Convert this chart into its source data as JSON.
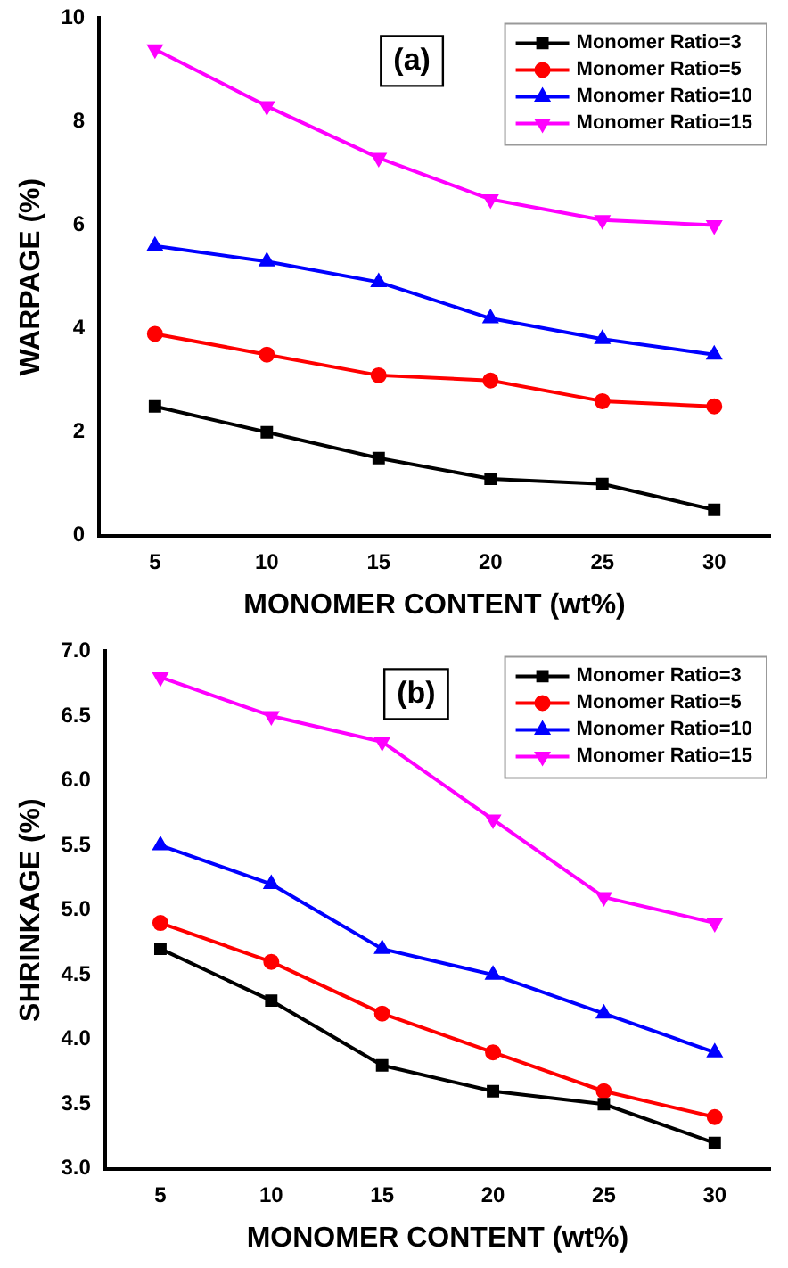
{
  "chart_data": [
    {
      "type": "line",
      "xlabel": "MONOMER CONTENT (wt%)",
      "ylabel": "WARPAGE (%)",
      "annotations": [
        "(a)"
      ],
      "x": [
        5,
        10,
        15,
        20,
        25,
        30
      ],
      "xlim": [
        2.5,
        32.5
      ],
      "xticks": [
        5,
        10,
        15,
        20,
        25,
        30
      ],
      "ylim": [
        0,
        10
      ],
      "yticks": [
        0,
        2,
        4,
        6,
        8,
        10
      ],
      "grid": false,
      "legend": "top right",
      "line_style": "solid",
      "series": [
        {
          "name": "Monomer Ratio=3",
          "color": "#000000",
          "marker": "square",
          "values": [
            2.5,
            2.0,
            1.5,
            1.1,
            1.0,
            0.5
          ]
        },
        {
          "name": "Monomer Ratio=5",
          "color": "#ff0000",
          "marker": "circle",
          "values": [
            3.9,
            3.5,
            3.1,
            3.0,
            2.6,
            2.5
          ]
        },
        {
          "name": "Monomer Ratio=10",
          "color": "#0000ff",
          "marker": "triangle",
          "values": [
            5.6,
            5.3,
            4.9,
            4.2,
            3.8,
            3.5
          ]
        },
        {
          "name": "Monomer Ratio=15",
          "color": "#ff00ff",
          "marker": "triangle-down",
          "values": [
            9.4,
            8.3,
            7.3,
            6.5,
            6.1,
            6.0
          ]
        }
      ]
    },
    {
      "type": "line",
      "xlabel": "MONOMER CONTENT (wt%)",
      "ylabel": "SHRINKAGE (%)",
      "annotations": [
        "(b)"
      ],
      "x": [
        5,
        10,
        15,
        20,
        25,
        30
      ],
      "xlim": [
        2.5,
        32.5
      ],
      "xticks": [
        5,
        10,
        15,
        20,
        25,
        30
      ],
      "ylim": [
        3,
        7
      ],
      "yticks": [
        {
          "value": 3,
          "label": "3.0"
        },
        3.5,
        {
          "value": 4,
          "label": "4.0"
        },
        4.5,
        {
          "value": 5,
          "label": "5.0"
        },
        5.5,
        {
          "value": 6,
          "label": "6.0"
        },
        6.5,
        {
          "value": 7,
          "label": "7.0"
        }
      ],
      "grid": false,
      "legend": "top right",
      "line_style": "solid",
      "series": [
        {
          "name": "Monomer Ratio=3",
          "color": "#000000",
          "marker": "square",
          "values": [
            4.7,
            4.3,
            3.8,
            3.6,
            3.5,
            3.2
          ]
        },
        {
          "name": "Monomer Ratio=5",
          "color": "#ff0000",
          "marker": "circle",
          "values": [
            4.9,
            4.6,
            4.2,
            3.9,
            3.6,
            3.4
          ]
        },
        {
          "name": "Monomer Ratio=10",
          "color": "#0000ff",
          "marker": "triangle",
          "values": [
            5.5,
            5.2,
            4.7,
            4.5,
            4.2,
            3.9
          ]
        },
        {
          "name": "Monomer Ratio=15",
          "color": "#ff00ff",
          "marker": "triangle-down",
          "values": [
            6.8,
            6.5,
            6.3,
            5.7,
            5.1,
            4.9
          ]
        }
      ]
    }
  ]
}
